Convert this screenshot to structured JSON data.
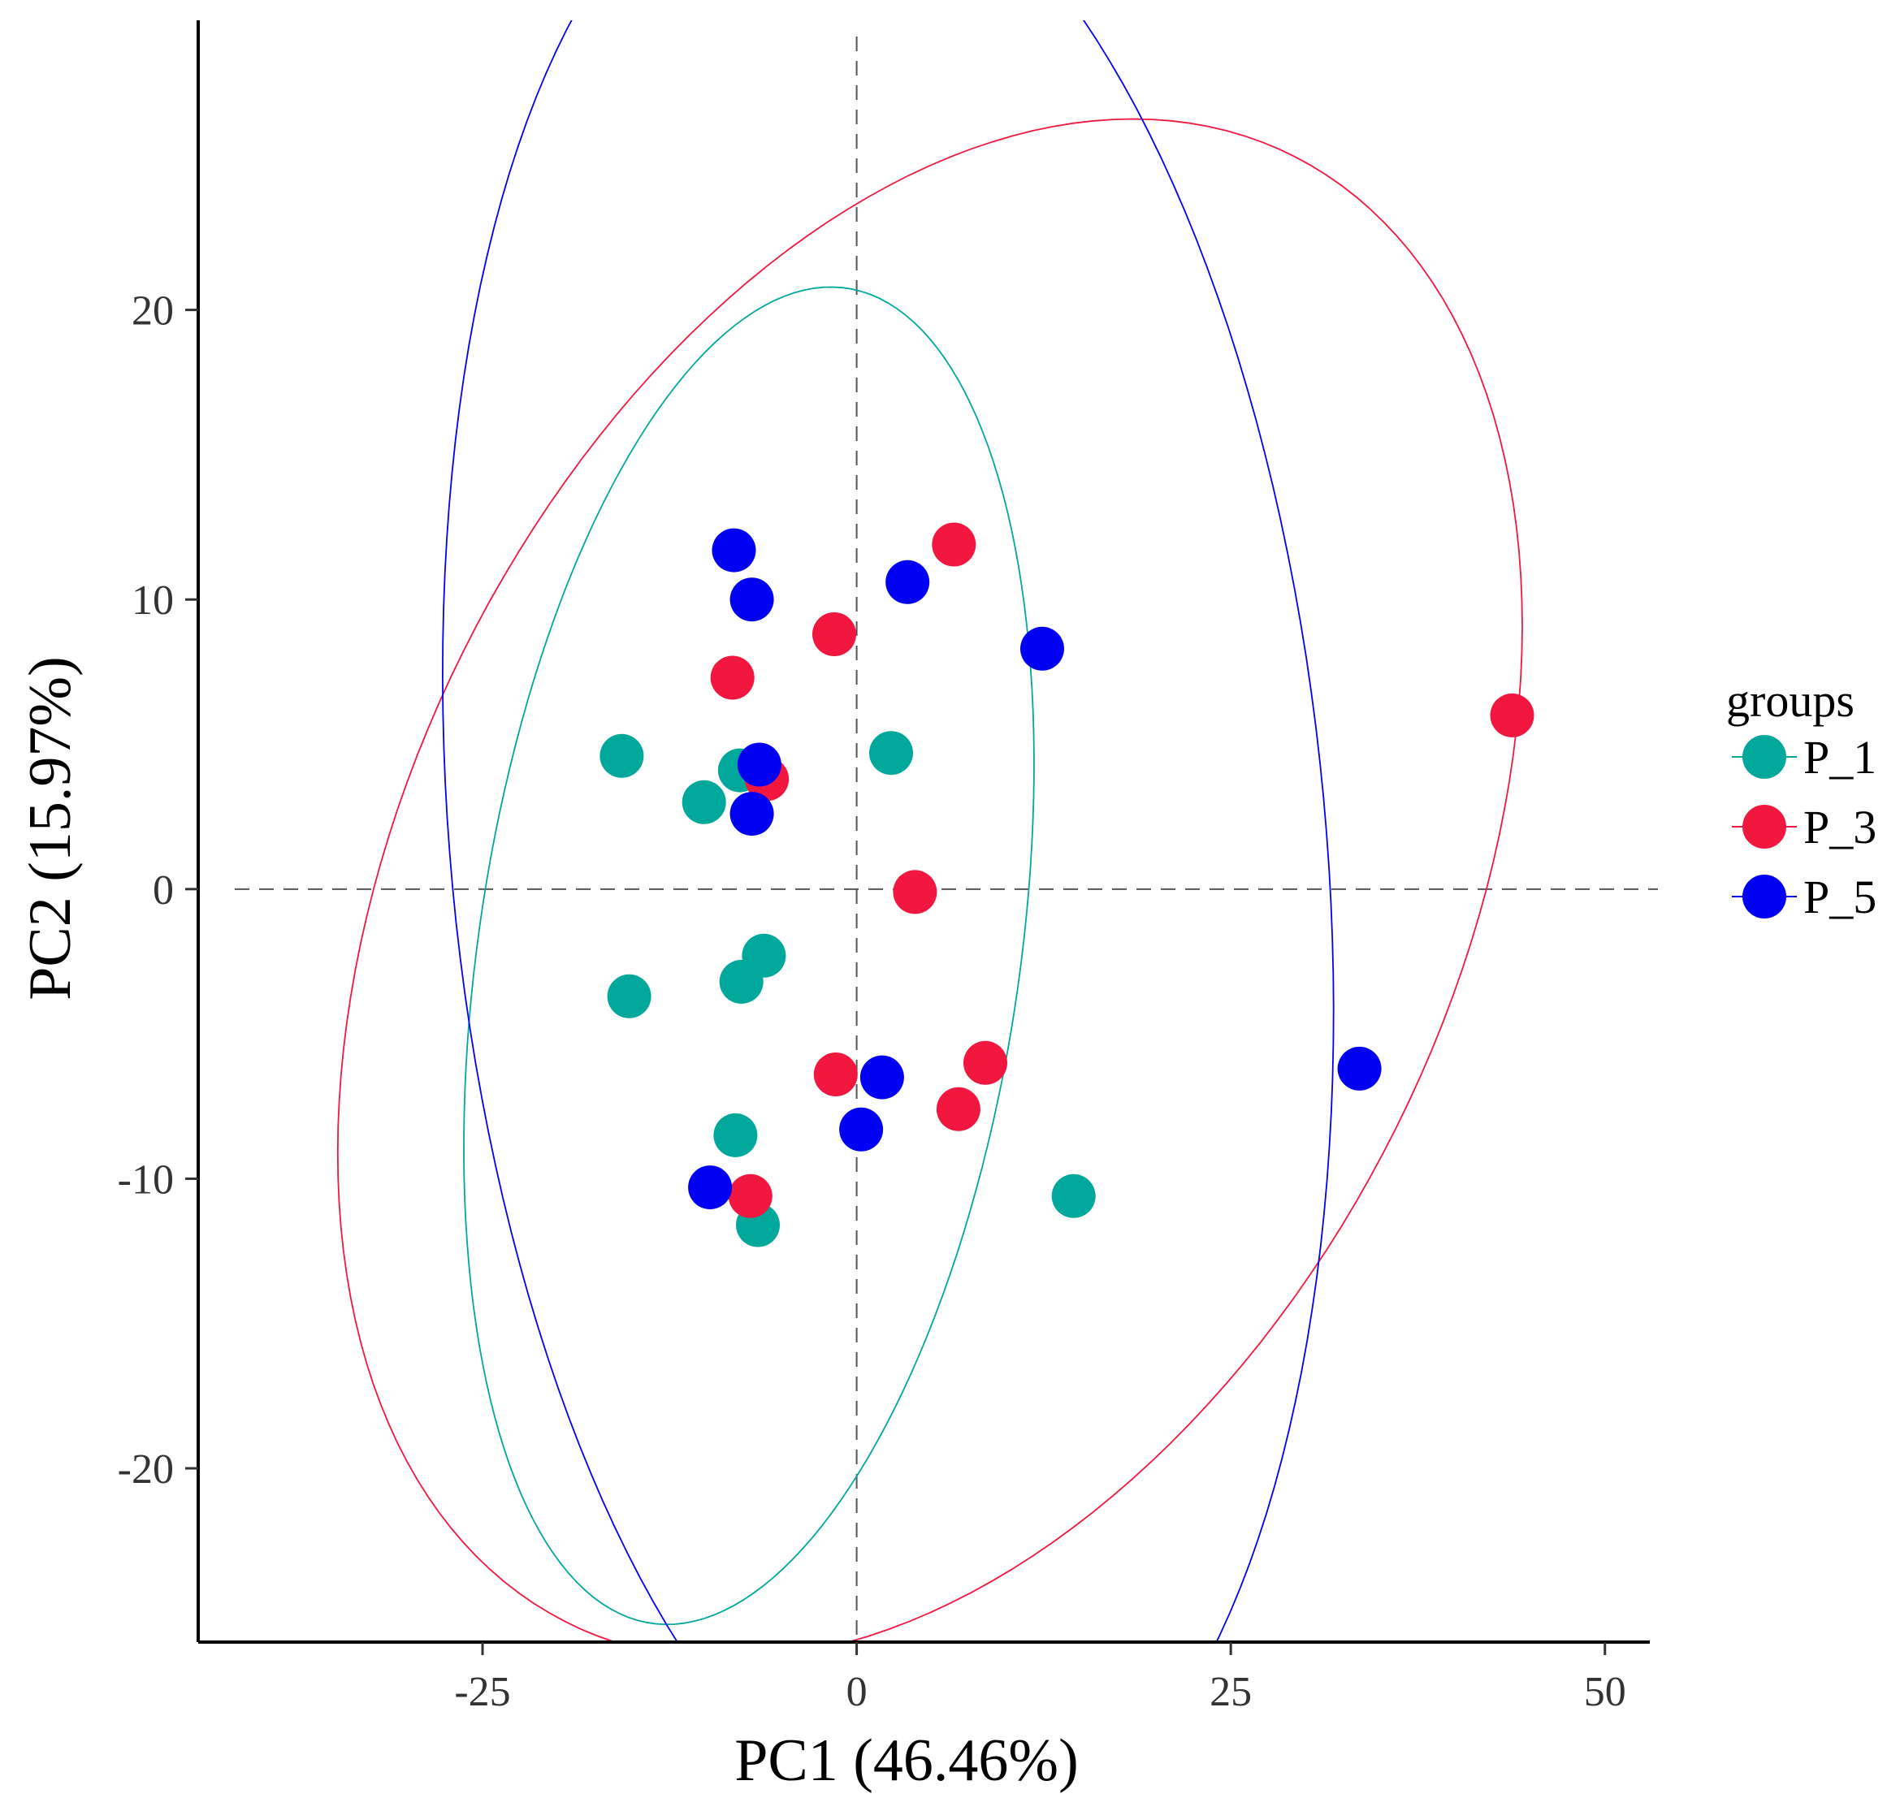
{
  "chart_data": {
    "type": "scatter",
    "title": "",
    "xlabel": "PC1 (46.46%)",
    "ylabel": "PC2 (15.97%)",
    "xlim": [
      -44,
      53
    ],
    "ylim": [
      -26,
      30
    ],
    "x_ticks": [
      -25,
      0,
      25,
      50
    ],
    "x_tick_labels": [
      "-25",
      "0",
      "25",
      "50"
    ],
    "y_ticks": [
      -20,
      -10,
      0,
      10,
      20
    ],
    "y_tick_labels": [
      "-20",
      "-10",
      "0",
      "10",
      "20"
    ],
    "reference_lines": {
      "x": 0,
      "y": 0,
      "style": "dashed"
    },
    "grid": false,
    "legend": {
      "title": "groups",
      "placement": "right"
    },
    "series": [
      {
        "name": "P_1",
        "color": "#00A89C",
        "points": [
          [
            -15.7,
            4.6
          ],
          [
            -10.2,
            3.0
          ],
          [
            -7.8,
            4.1
          ],
          [
            -6.2,
            -2.3
          ],
          [
            -7.7,
            -3.2
          ],
          [
            -15.2,
            -3.7
          ],
          [
            -8.1,
            -8.5
          ],
          [
            -6.6,
            -11.6
          ],
          [
            2.3,
            4.7
          ],
          [
            14.5,
            -10.6
          ]
        ],
        "ellipse": {
          "center": [
            -7.2,
            -2.3
          ],
          "semi_axes": [
            24.5,
            17.2
          ],
          "angle_deg": 62
        }
      },
      {
        "name": "P_3",
        "color": "#F2173F",
        "points": [
          [
            6.5,
            11.9
          ],
          [
            -1.5,
            8.8
          ],
          [
            -8.3,
            7.3
          ],
          [
            -6.0,
            3.8
          ],
          [
            3.9,
            -0.1
          ],
          [
            -1.4,
            -6.4
          ],
          [
            8.6,
            -6.0
          ],
          [
            6.8,
            -7.6
          ],
          [
            -7.1,
            -10.6
          ],
          [
            43.8,
            6.0
          ]
        ],
        "ellipse": {
          "center": [
            4.9,
            0.0
          ],
          "semi_axes": [
            41.2,
            24.0
          ],
          "angle_deg": 20
        }
      },
      {
        "name": "P_5",
        "color": "#0000F2",
        "points": [
          [
            -8.2,
            11.7
          ],
          [
            -7.0,
            10.0
          ],
          [
            3.4,
            10.6
          ],
          [
            12.4,
            8.3
          ],
          [
            -6.5,
            4.3
          ],
          [
            -7.0,
            2.6
          ],
          [
            1.7,
            -6.5
          ],
          [
            0.3,
            -8.3
          ],
          [
            -9.8,
            -10.3
          ],
          [
            33.6,
            -6.2
          ]
        ],
        "ellipse": {
          "center": [
            2.1,
            1.6
          ],
          "semi_axes": [
            36.0,
            28.5
          ],
          "angle_deg": -67
        }
      }
    ]
  }
}
